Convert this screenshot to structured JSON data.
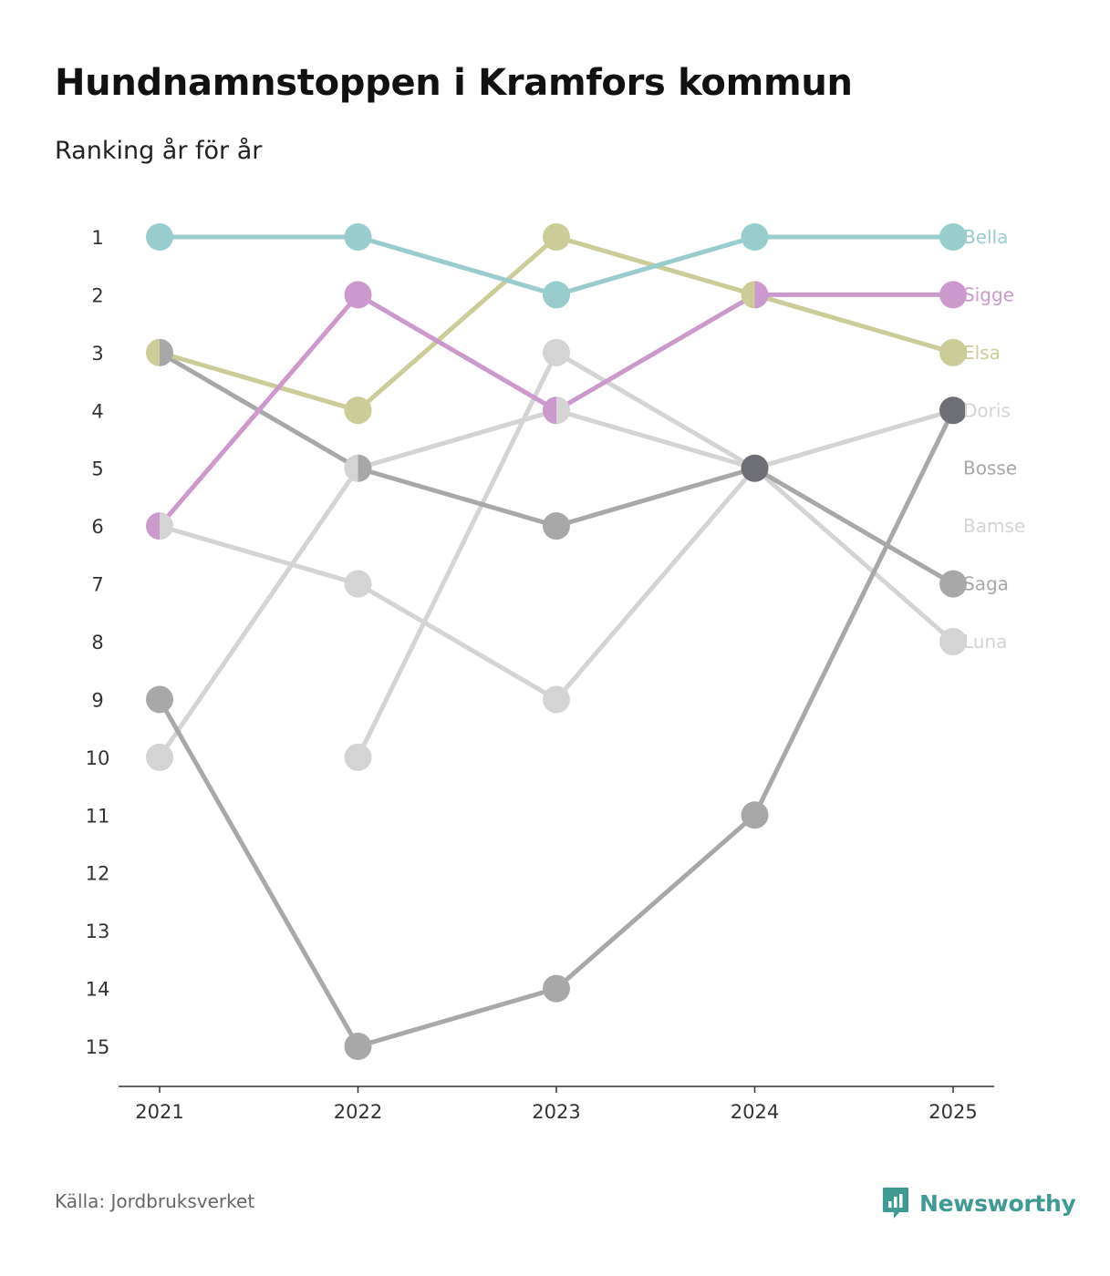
{
  "header": {
    "title": "Hundnamnstoppen i Kramfors kommun",
    "subtitle": "Ranking år för år"
  },
  "footer": {
    "source": "Källa: Jordbruksverket",
    "brand": "Newsworthy",
    "brand_color": "#3f9a93"
  },
  "chart_data": {
    "type": "line",
    "title": "Hundnamnstoppen i Kramfors kommun",
    "subtitle": "Ranking år för år",
    "xlabel": "",
    "ylabel": "",
    "x": [
      "2021",
      "2022",
      "2023",
      "2024",
      "2025"
    ],
    "y_ticks": [
      "1",
      "2",
      "3",
      "4",
      "5",
      "6",
      "7",
      "8",
      "9",
      "10",
      "11",
      "12",
      "13",
      "14",
      "15"
    ],
    "ylim": [
      1,
      15
    ],
    "y_inverted": true,
    "series": [
      {
        "name": "Luna",
        "color": "#d4d4d4",
        "values": [
          6,
          7,
          9,
          5,
          8
        ]
      },
      {
        "name": "Bamse",
        "color": "#d4d4d4",
        "values": [
          10,
          5,
          4,
          5,
          4
        ]
      },
      {
        "name": "Bosse",
        "color": "#d4d4d4",
        "values": [
          null,
          10,
          3,
          5,
          null
        ]
      },
      {
        "name": "Saga",
        "color": "#a8a8a8",
        "values": [
          3,
          5,
          6,
          5,
          7
        ]
      },
      {
        "name": "Doris",
        "color": "#a8a8a8",
        "values": [
          9,
          15,
          14,
          11,
          4
        ]
      },
      {
        "name": "Elsa",
        "color": "#cccc99",
        "values": [
          3,
          4,
          1,
          2,
          3
        ]
      },
      {
        "name": "Sigge",
        "color": "#cc99cc",
        "values": [
          6,
          2,
          4,
          2,
          2
        ]
      },
      {
        "name": "Bella",
        "color": "#99cccc",
        "values": [
          1,
          1,
          2,
          1,
          1
        ]
      }
    ],
    "end_labels": [
      {
        "name": "Bella",
        "color": "#99cccc",
        "rank": 1
      },
      {
        "name": "Sigge",
        "color": "#cc99cc",
        "rank": 2
      },
      {
        "name": "Elsa",
        "color": "#cccc99",
        "rank": 3
      },
      {
        "name": "Doris",
        "color": "#d4d4d4",
        "rank": 4
      },
      {
        "name": "Bosse",
        "color": "#a8a8a8",
        "rank": 5
      },
      {
        "name": "Bamse",
        "color": "#d4d4d4",
        "rank": 6
      },
      {
        "name": "Saga",
        "color": "#a8a8a8",
        "rank": 7
      },
      {
        "name": "Luna",
        "color": "#d4d4d4",
        "rank": 8
      }
    ],
    "highlighted_points": [
      {
        "year": "2024",
        "rank": 5,
        "color": "#6e6e75"
      },
      {
        "year": "2025",
        "rank": 4,
        "color": "#6e6e75"
      }
    ],
    "grid": false,
    "legend": "right, end-of-line labels"
  }
}
